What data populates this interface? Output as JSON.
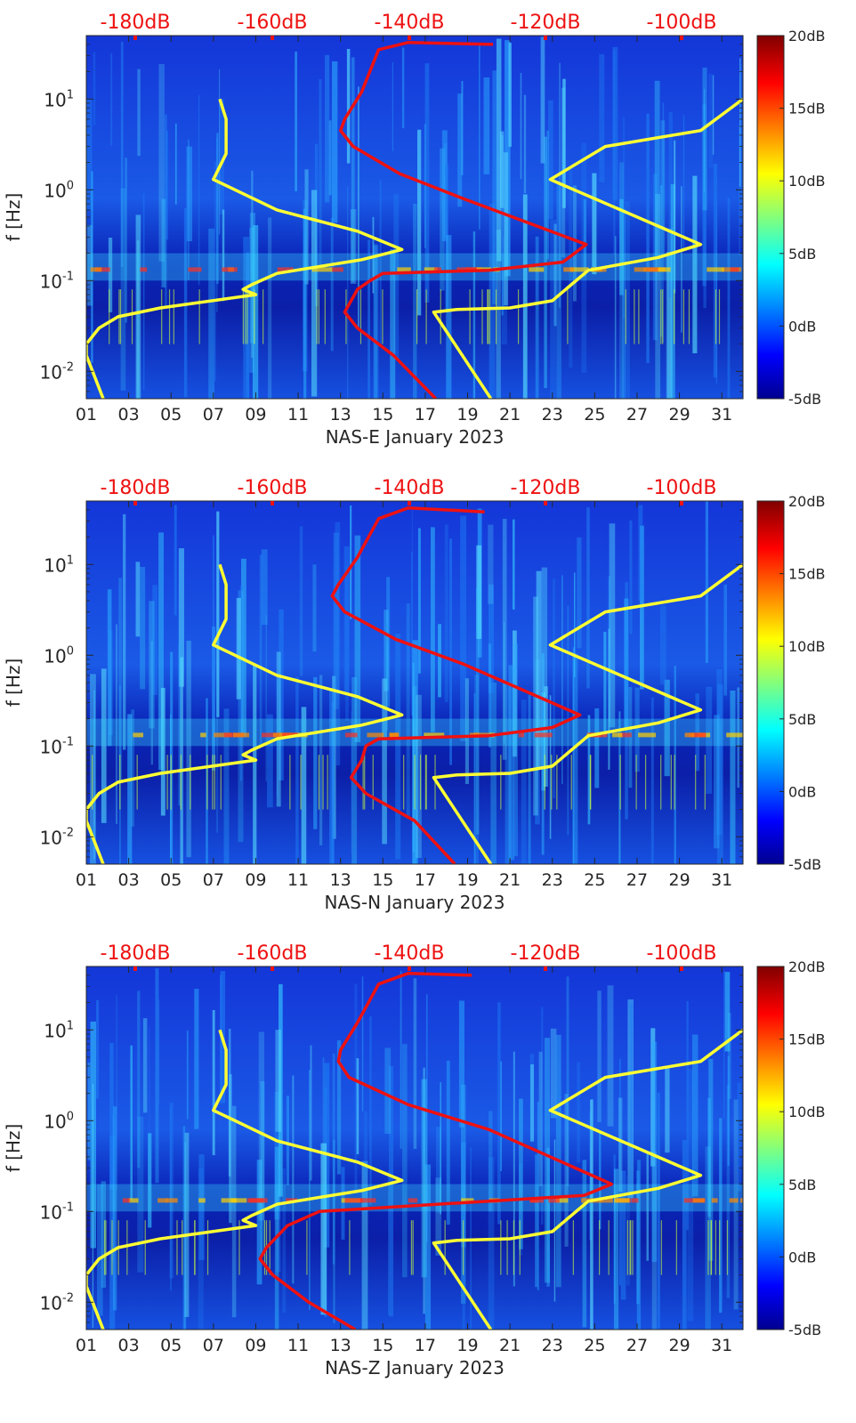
{
  "chart_data": [
    {
      "type": "heatmap",
      "xlabel": "NAS-E January 2023",
      "ylabel": "f [Hz]",
      "x_ticks": [
        "01",
        "03",
        "05",
        "07",
        "09",
        "11",
        "13",
        "15",
        "17",
        "19",
        "21",
        "23",
        "25",
        "27",
        "29",
        "31"
      ],
      "y_scale": "log",
      "ylim": [
        0.005,
        50
      ],
      "y_ticks": [
        "10-2",
        "10-1",
        "100",
        "101"
      ],
      "top_ticks": [
        "-180dB",
        "-160dB",
        "-140dB",
        "-120dB",
        "-100dB"
      ],
      "colorbar": {
        "ticks": [
          "20dB",
          "15dB",
          "10dB",
          "5dB",
          "0dB",
          "-5dB"
        ],
        "range": [
          -5,
          20
        ]
      },
      "xlim": [
        1,
        32
      ],
      "series": [
        {
          "color": "#ffff33",
          "points": [
            [
              7.3,
              10
            ],
            [
              7.6,
              6
            ],
            [
              7.6,
              2.5
            ],
            [
              7.0,
              1.3
            ],
            [
              10,
              0.6
            ],
            [
              13.8,
              0.35
            ],
            [
              15.9,
              0.22
            ],
            [
              14,
              0.17
            ],
            [
              10,
              0.12
            ],
            [
              8.8,
              0.09
            ],
            [
              8.4,
              0.08
            ],
            [
              9.0,
              0.07
            ],
            [
              4.5,
              0.05
            ],
            [
              2.5,
              0.04
            ],
            [
              1.6,
              0.03
            ],
            [
              1.0,
              0.02
            ],
            [
              1.0,
              0.015
            ],
            [
              1.3,
              0.01
            ],
            [
              1.8,
              0.005
            ]
          ]
        },
        {
          "color": "#ffff33",
          "points": [
            [
              32,
              10
            ],
            [
              30,
              4.5
            ],
            [
              25.5,
              3
            ],
            [
              22.9,
              1.3
            ],
            [
              30,
              0.25
            ],
            [
              28,
              0.18
            ],
            [
              24.7,
              0.13
            ],
            [
              23,
              0.06
            ],
            [
              21,
              0.05
            ],
            [
              18.5,
              0.048
            ],
            [
              17.4,
              0.045
            ],
            [
              20.1,
              0.005
            ]
          ]
        },
        {
          "color": "#ee1111",
          "points": [
            [
              20.2,
              40
            ],
            [
              16.2,
              42
            ],
            [
              14.8,
              35
            ],
            [
              14.0,
              12
            ],
            [
              13.2,
              6
            ],
            [
              13.0,
              4.5
            ],
            [
              13.6,
              3
            ],
            [
              15.8,
              1.5
            ],
            [
              18.8,
              0.8
            ],
            [
              24.6,
              0.25
            ],
            [
              23.5,
              0.16
            ],
            [
              20,
              0.13
            ],
            [
              15,
              0.12
            ],
            [
              14.4,
              0.1
            ],
            [
              13.8,
              0.08
            ],
            [
              13.5,
              0.06
            ],
            [
              13.2,
              0.045
            ],
            [
              13.8,
              0.03
            ],
            [
              15.5,
              0.015
            ],
            [
              17.5,
              0.005
            ]
          ]
        }
      ]
    },
    {
      "type": "heatmap",
      "xlabel": "NAS-N January 2023",
      "ylabel": "f [Hz]",
      "x_ticks": [
        "01",
        "03",
        "05",
        "07",
        "09",
        "11",
        "13",
        "15",
        "17",
        "19",
        "21",
        "23",
        "25",
        "27",
        "29",
        "31"
      ],
      "y_scale": "log",
      "ylim": [
        0.005,
        50
      ],
      "y_ticks": [
        "10-2",
        "10-1",
        "100",
        "101"
      ],
      "top_ticks": [
        "-180dB",
        "-160dB",
        "-140dB",
        "-120dB",
        "-100dB"
      ],
      "colorbar": {
        "ticks": [
          "20dB",
          "15dB",
          "10dB",
          "5dB",
          "0dB",
          "-5dB"
        ],
        "range": [
          -5,
          20
        ]
      },
      "xlim": [
        1,
        32
      ],
      "series": [
        {
          "color": "#ffff33",
          "points": [
            [
              7.3,
              10
            ],
            [
              7.6,
              6
            ],
            [
              7.6,
              2.5
            ],
            [
              7.0,
              1.3
            ],
            [
              10,
              0.6
            ],
            [
              13.8,
              0.35
            ],
            [
              15.9,
              0.22
            ],
            [
              14,
              0.17
            ],
            [
              10,
              0.12
            ],
            [
              8.8,
              0.09
            ],
            [
              8.4,
              0.08
            ],
            [
              9.0,
              0.07
            ],
            [
              4.5,
              0.05
            ],
            [
              2.5,
              0.04
            ],
            [
              1.6,
              0.03
            ],
            [
              1.0,
              0.02
            ],
            [
              1.0,
              0.015
            ],
            [
              1.3,
              0.01
            ],
            [
              1.8,
              0.005
            ]
          ]
        },
        {
          "color": "#ffff33",
          "points": [
            [
              32,
              10
            ],
            [
              30,
              4.5
            ],
            [
              25.5,
              3
            ],
            [
              22.9,
              1.3
            ],
            [
              30,
              0.25
            ],
            [
              28,
              0.18
            ],
            [
              24.7,
              0.13
            ],
            [
              23,
              0.06
            ],
            [
              21,
              0.05
            ],
            [
              18.5,
              0.048
            ],
            [
              17.4,
              0.045
            ],
            [
              20.1,
              0.005
            ]
          ]
        },
        {
          "color": "#ee1111",
          "points": [
            [
              19.8,
              38
            ],
            [
              16.2,
              42
            ],
            [
              14.8,
              32
            ],
            [
              13.8,
              12
            ],
            [
              12.9,
              6
            ],
            [
              12.6,
              4.5
            ],
            [
              13.2,
              3
            ],
            [
              15.6,
              1.5
            ],
            [
              18.8,
              0.8
            ],
            [
              24.3,
              0.22
            ],
            [
              23,
              0.16
            ],
            [
              20,
              0.13
            ],
            [
              14.8,
              0.12
            ],
            [
              14.2,
              0.1
            ],
            [
              14.0,
              0.07
            ],
            [
              13.5,
              0.045
            ],
            [
              14.2,
              0.03
            ],
            [
              16.5,
              0.015
            ],
            [
              18.4,
              0.005
            ]
          ]
        }
      ]
    },
    {
      "type": "heatmap",
      "xlabel": "NAS-Z January 2023",
      "ylabel": "f [Hz]",
      "x_ticks": [
        "01",
        "03",
        "05",
        "07",
        "09",
        "11",
        "13",
        "15",
        "17",
        "19",
        "21",
        "23",
        "25",
        "27",
        "29",
        "31"
      ],
      "y_scale": "log",
      "ylim": [
        0.005,
        50
      ],
      "y_ticks": [
        "10-2",
        "10-1",
        "100",
        "101"
      ],
      "top_ticks": [
        "-180dB",
        "-160dB",
        "-140dB",
        "-120dB",
        "-100dB"
      ],
      "colorbar": {
        "ticks": [
          "20dB",
          "15dB",
          "10dB",
          "5dB",
          "0dB",
          "-5dB"
        ],
        "range": [
          -5,
          20
        ]
      },
      "xlim": [
        1,
        32
      ],
      "series": [
        {
          "color": "#ffff33",
          "points": [
            [
              7.3,
              10
            ],
            [
              7.6,
              6
            ],
            [
              7.6,
              2.5
            ],
            [
              7.0,
              1.3
            ],
            [
              10,
              0.6
            ],
            [
              13.8,
              0.35
            ],
            [
              15.9,
              0.22
            ],
            [
              14,
              0.17
            ],
            [
              10,
              0.12
            ],
            [
              8.8,
              0.09
            ],
            [
              8.4,
              0.08
            ],
            [
              9.0,
              0.07
            ],
            [
              4.5,
              0.05
            ],
            [
              2.5,
              0.04
            ],
            [
              1.6,
              0.03
            ],
            [
              1.0,
              0.02
            ],
            [
              1.0,
              0.015
            ],
            [
              1.3,
              0.01
            ],
            [
              1.8,
              0.005
            ]
          ]
        },
        {
          "color": "#ffff33",
          "points": [
            [
              32,
              10
            ],
            [
              30,
              4.5
            ],
            [
              25.5,
              3
            ],
            [
              22.9,
              1.3
            ],
            [
              30,
              0.25
            ],
            [
              28,
              0.18
            ],
            [
              24.7,
              0.13
            ],
            [
              23,
              0.06
            ],
            [
              21,
              0.05
            ],
            [
              18.5,
              0.048
            ],
            [
              17.4,
              0.045
            ],
            [
              20.1,
              0.005
            ]
          ]
        },
        {
          "color": "#ee1111",
          "points": [
            [
              19.2,
              40
            ],
            [
              16.2,
              42
            ],
            [
              14.8,
              32
            ],
            [
              13.8,
              12
            ],
            [
              13.0,
              6
            ],
            [
              12.9,
              4.5
            ],
            [
              13.4,
              3
            ],
            [
              16.2,
              1.5
            ],
            [
              20,
              0.8
            ],
            [
              25.8,
              0.2
            ],
            [
              24.5,
              0.15
            ],
            [
              20,
              0.13
            ],
            [
              12,
              0.1
            ],
            [
              10.5,
              0.07
            ],
            [
              9.5,
              0.04
            ],
            [
              9.2,
              0.03
            ],
            [
              9.8,
              0.02
            ],
            [
              11.5,
              0.01
            ],
            [
              13.7,
              0.005
            ]
          ]
        }
      ]
    }
  ]
}
